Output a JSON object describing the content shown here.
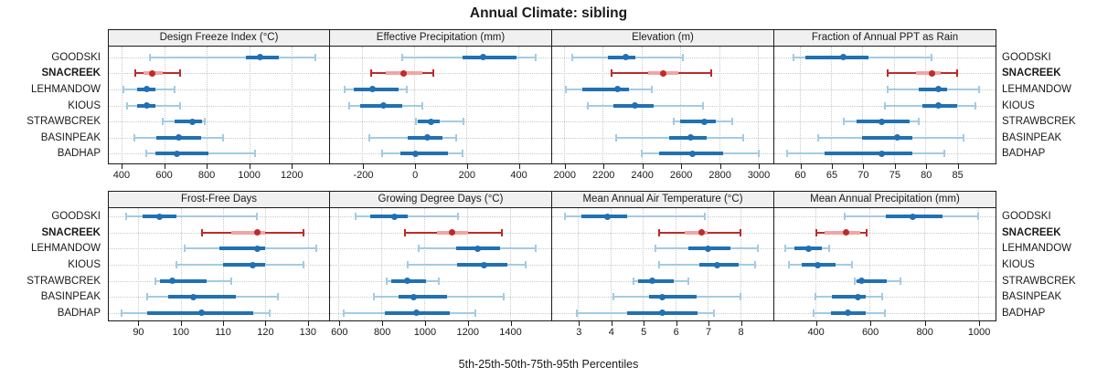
{
  "title": "Annual Climate: sibling",
  "footer": "5th-25th-50th-75th-95th Percentiles",
  "colors": {
    "blue_main": "#2171b2",
    "blue_light": "#a3cbe2",
    "red_main": "#bd2b2b",
    "red_light": "#efa6a6",
    "grid": "#c9c9c9",
    "header_bg": "#f0f0f0",
    "border": "#1a1a1a"
  },
  "sites": [
    {
      "name": "GOODSKI",
      "highlight": false
    },
    {
      "name": "SNACREEK",
      "highlight": true
    },
    {
      "name": "LEHMANDOW",
      "highlight": false
    },
    {
      "name": "KIOUS",
      "highlight": false
    },
    {
      "name": "STRAWBCREK",
      "highlight": false
    },
    {
      "name": "BASINPEAK",
      "highlight": false
    },
    {
      "name": "BADHAP",
      "highlight": false
    }
  ],
  "chart_data": {
    "type": "trellis-percentile-dotplot",
    "percentiles": [
      "5th",
      "25th",
      "50th",
      "75th",
      "95th"
    ],
    "legend": "none",
    "grid": "dotted",
    "layout": "2 rows x 4 columns, site names on left and right margins",
    "panels": [
      {
        "title": "Design Freeze Index (°C)",
        "grid_row": 0,
        "grid_col": 0,
        "xlim": [
          340,
          1375
        ],
        "ticks": [
          400,
          600,
          800,
          1000,
          1200
        ],
        "data": [
          [
            535,
            985,
            1050,
            1140,
            1310
          ],
          [
            465,
            505,
            545,
            595,
            675
          ],
          [
            410,
            475,
            520,
            560,
            650
          ],
          [
            425,
            475,
            520,
            560,
            675
          ],
          [
            595,
            650,
            735,
            780,
            790
          ],
          [
            460,
            565,
            670,
            775,
            875
          ],
          [
            515,
            560,
            660,
            810,
            1025
          ]
        ]
      },
      {
        "title": "Effective Precipitation (mm)",
        "grid_row": 0,
        "grid_col": 1,
        "xlim": [
          -325,
          525
        ],
        "ticks": [
          -200,
          0,
          200,
          400
        ],
        "data": [
          [
            -45,
            185,
            265,
            395,
            470
          ],
          [
            -165,
            -110,
            -40,
            30,
            75
          ],
          [
            -270,
            -235,
            -160,
            -60,
            -30
          ],
          [
            -250,
            -210,
            -120,
            -45,
            30
          ],
          [
            5,
            15,
            65,
            100,
            190
          ],
          [
            -175,
            -25,
            50,
            110,
            160
          ],
          [
            -125,
            -55,
            5,
            130,
            185
          ]
        ]
      },
      {
        "title": "Elevation (m)",
        "grid_row": 0,
        "grid_col": 2,
        "xlim": [
          1940,
          3075
        ],
        "ticks": [
          2000,
          2200,
          2400,
          2600,
          2800,
          3000
        ],
        "data": [
          [
            2045,
            2225,
            2320,
            2370,
            2615
          ],
          [
            2245,
            2435,
            2510,
            2590,
            2760
          ],
          [
            2010,
            2095,
            2275,
            2335,
            2455
          ],
          [
            2125,
            2255,
            2365,
            2465,
            2715
          ],
          [
            2565,
            2600,
            2725,
            2785,
            2870
          ],
          [
            2270,
            2545,
            2655,
            2735,
            2925
          ],
          [
            2400,
            2490,
            2665,
            2820,
            3005
          ]
        ]
      },
      {
        "title": "Fraction of Annual PPT as Rain",
        "grid_row": 0,
        "grid_col": 3,
        "xlim": [
          56,
          91
        ],
        "ticks": [
          60,
          65,
          70,
          75,
          80,
          85
        ],
        "data": [
          [
            59,
            61,
            67,
            71,
            81
          ],
          [
            74,
            78.5,
            81,
            82.5,
            85
          ],
          [
            74,
            79,
            82,
            83.5,
            88.5
          ],
          [
            73.5,
            79.5,
            82,
            85,
            88
          ],
          [
            67,
            69,
            73,
            77.5,
            79
          ],
          [
            63,
            70,
            75.5,
            78,
            86
          ],
          [
            58,
            64,
            73,
            78,
            83
          ]
        ]
      },
      {
        "title": "Frost-Free Days",
        "grid_row": 1,
        "grid_col": 0,
        "xlim": [
          83,
          135
        ],
        "ticks": [
          90,
          100,
          110,
          120,
          130
        ],
        "data": [
          [
            87,
            91,
            95,
            99,
            118
          ],
          [
            105,
            112,
            118,
            120,
            129
          ],
          [
            101,
            109,
            118,
            120,
            132
          ],
          [
            99,
            110,
            117,
            120,
            129
          ],
          [
            94,
            95,
            98,
            106,
            112
          ],
          [
            92,
            97,
            103,
            113,
            123
          ],
          [
            86,
            92,
            105,
            117,
            121
          ]
        ]
      },
      {
        "title": "Growing Degree Days (°C)",
        "grid_row": 1,
        "grid_col": 1,
        "xlim": [
          560,
          1590
        ],
        "ticks": [
          600,
          800,
          1000,
          1200,
          1400
        ],
        "data": [
          [
            680,
            750,
            860,
            925,
            1160
          ],
          [
            910,
            1060,
            1130,
            1205,
            1365
          ],
          [
            975,
            1150,
            1250,
            1355,
            1520
          ],
          [
            925,
            1155,
            1280,
            1390,
            1475
          ],
          [
            825,
            845,
            920,
            1010,
            1070
          ],
          [
            765,
            880,
            950,
            1105,
            1370
          ],
          [
            625,
            815,
            965,
            1120,
            1240
          ]
        ]
      },
      {
        "title": "Mean Annual Air Temperature (°C)",
        "grid_row": 1,
        "grid_col": 2,
        "xlim": [
          2.2,
          9.0
        ],
        "ticks": [
          3,
          4,
          5,
          6,
          7,
          8
        ],
        "data": [
          [
            2.6,
            3.1,
            3.9,
            4.5,
            6.9
          ],
          [
            5.5,
            6.3,
            6.8,
            7.0,
            8.0
          ],
          [
            5.4,
            6.4,
            7.0,
            7.7,
            8.55
          ],
          [
            5.5,
            6.75,
            7.3,
            7.95,
            8.45
          ],
          [
            4.7,
            4.85,
            5.3,
            5.95,
            6.4
          ],
          [
            4.1,
            5.2,
            5.6,
            6.65,
            8.0
          ],
          [
            2.95,
            4.5,
            5.6,
            6.7,
            7.2
          ]
        ]
      },
      {
        "title": "Mean Annual Precipitation (mm)",
        "grid_row": 1,
        "grid_col": 3,
        "xlim": [
          250,
          1060
        ],
        "ticks": [
          400,
          600,
          800,
          1000
        ],
        "data": [
          [
            510,
            660,
            760,
            870,
            1000
          ],
          [
            405,
            435,
            515,
            565,
            590
          ],
          [
            290,
            325,
            375,
            425,
            450
          ],
          [
            305,
            350,
            410,
            475,
            535
          ],
          [
            545,
            552,
            570,
            665,
            715
          ],
          [
            400,
            463,
            558,
            585,
            645
          ],
          [
            395,
            460,
            520,
            585,
            655
          ]
        ]
      }
    ]
  }
}
